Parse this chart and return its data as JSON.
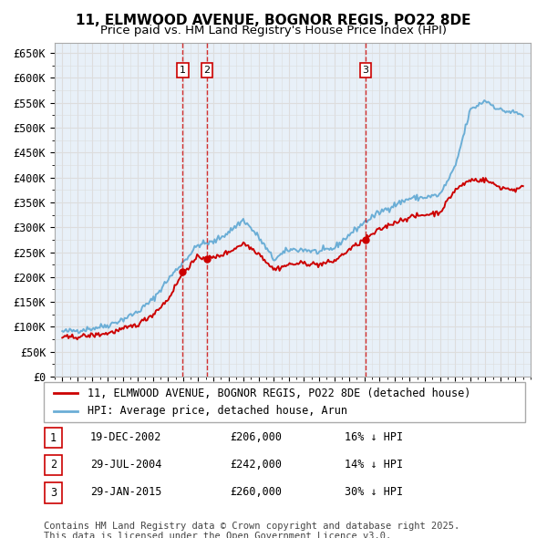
{
  "title": "11, ELMWOOD AVENUE, BOGNOR REGIS, PO22 8DE",
  "subtitle": "Price paid vs. HM Land Registry's House Price Index (HPI)",
  "xlabel": "",
  "ylabel": "",
  "ylim": [
    0,
    670000
  ],
  "yticks": [
    0,
    50000,
    100000,
    150000,
    200000,
    250000,
    300000,
    350000,
    400000,
    450000,
    500000,
    550000,
    600000,
    650000
  ],
  "ytick_labels": [
    "£0",
    "£50K",
    "£100K",
    "£150K",
    "£200K",
    "£250K",
    "£300K",
    "£350K",
    "£400K",
    "£450K",
    "£500K",
    "£550K",
    "£600K",
    "£650K"
  ],
  "hpi_color": "#6baed6",
  "price_color": "#cc0000",
  "vline_color": "#cc0000",
  "transaction_color": "#cc0000",
  "background_color": "#ffffff",
  "grid_color": "#dddddd",
  "transactions": [
    {
      "id": 1,
      "date_num": 2002.97,
      "price": 206000,
      "label": "19-DEC-2002",
      "amount": "£206,000",
      "hpi_note": "16% ↓ HPI"
    },
    {
      "id": 2,
      "date_num": 2004.58,
      "price": 242000,
      "label": "29-JUL-2004",
      "amount": "£242,000",
      "hpi_note": "14% ↓ HPI"
    },
    {
      "id": 3,
      "date_num": 2015.08,
      "price": 260000,
      "label": "29-JAN-2015",
      "amount": "£260,000",
      "hpi_note": "30% ↓ HPI"
    }
  ],
  "legend_line1": "11, ELMWOOD AVENUE, BOGNOR REGIS, PO22 8DE (detached house)",
  "legend_line2": "HPI: Average price, detached house, Arun",
  "footnote1": "Contains HM Land Registry data © Crown copyright and database right 2025.",
  "footnote2": "This data is licensed under the Open Government Licence v3.0.",
  "title_fontsize": 11,
  "subtitle_fontsize": 9.5,
  "tick_fontsize": 8.5,
  "legend_fontsize": 8.5,
  "footnote_fontsize": 7.5
}
